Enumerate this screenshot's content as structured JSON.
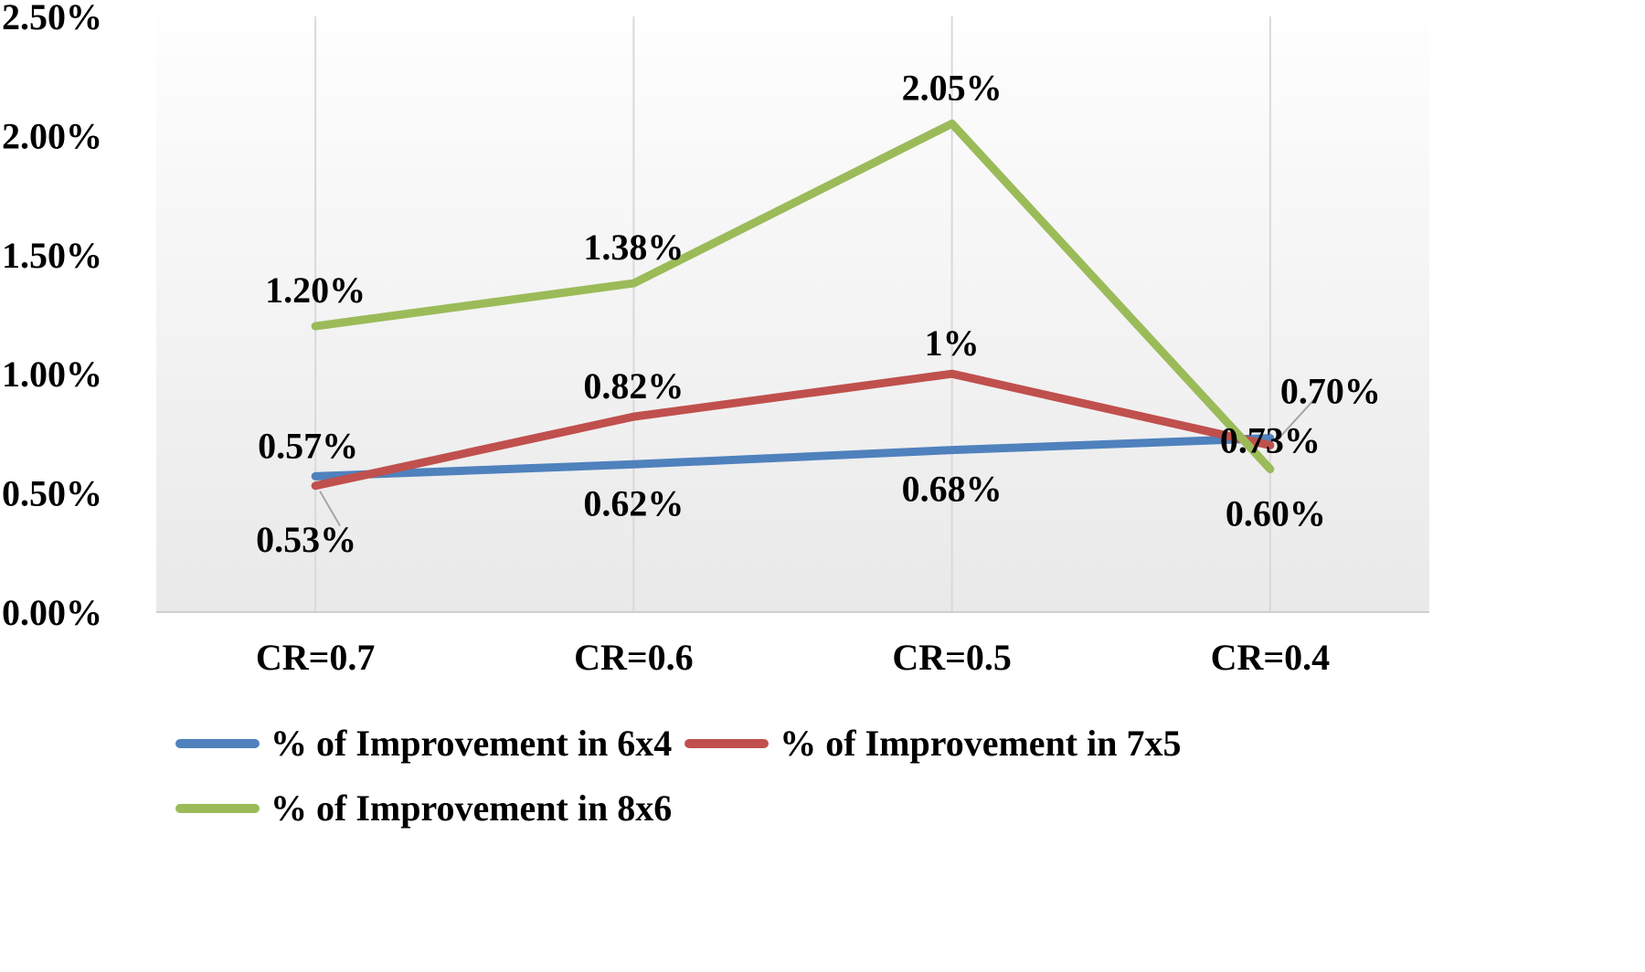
{
  "chart_data": {
    "type": "line",
    "title": "",
    "xlabel": "",
    "ylabel": "",
    "categories": [
      "CR=0.7",
      "CR=0.6",
      "CR=0.5",
      "CR=0.4"
    ],
    "series": [
      {
        "name": "% of Improvement in 6x4",
        "color": "#4F81BD",
        "values": [
          0.57,
          0.62,
          0.68,
          0.73
        ],
        "labels": [
          "0.57%",
          "0.62%",
          "0.68%",
          "0.73%"
        ]
      },
      {
        "name": "% of Improvement in 7x5",
        "color": "#C0504D",
        "values": [
          0.53,
          0.82,
          1.0,
          0.7
        ],
        "labels": [
          "0.53%",
          "0.82%",
          "1%",
          "0.70%"
        ]
      },
      {
        "name": "% of Improvement in 8x6",
        "color": "#9BBB59",
        "values": [
          1.2,
          1.38,
          2.05,
          0.6
        ],
        "labels": [
          "1.20%",
          "1.38%",
          "2.05%",
          "0.60%"
        ]
      }
    ],
    "y_axis": {
      "min": 0,
      "max": 2.5,
      "ticks": [
        "0.00%",
        "0.50%",
        "1.00%",
        "1.50%",
        "2.00%",
        "2.50%"
      ]
    },
    "legend_position": "bottom",
    "grid": "vertical",
    "plot_bg_top": "#FEFEFE",
    "plot_bg_bottom": "#E9E9E9",
    "gridline_color": "#D9D9D9",
    "leader_line_color": "#A6A6A6"
  }
}
